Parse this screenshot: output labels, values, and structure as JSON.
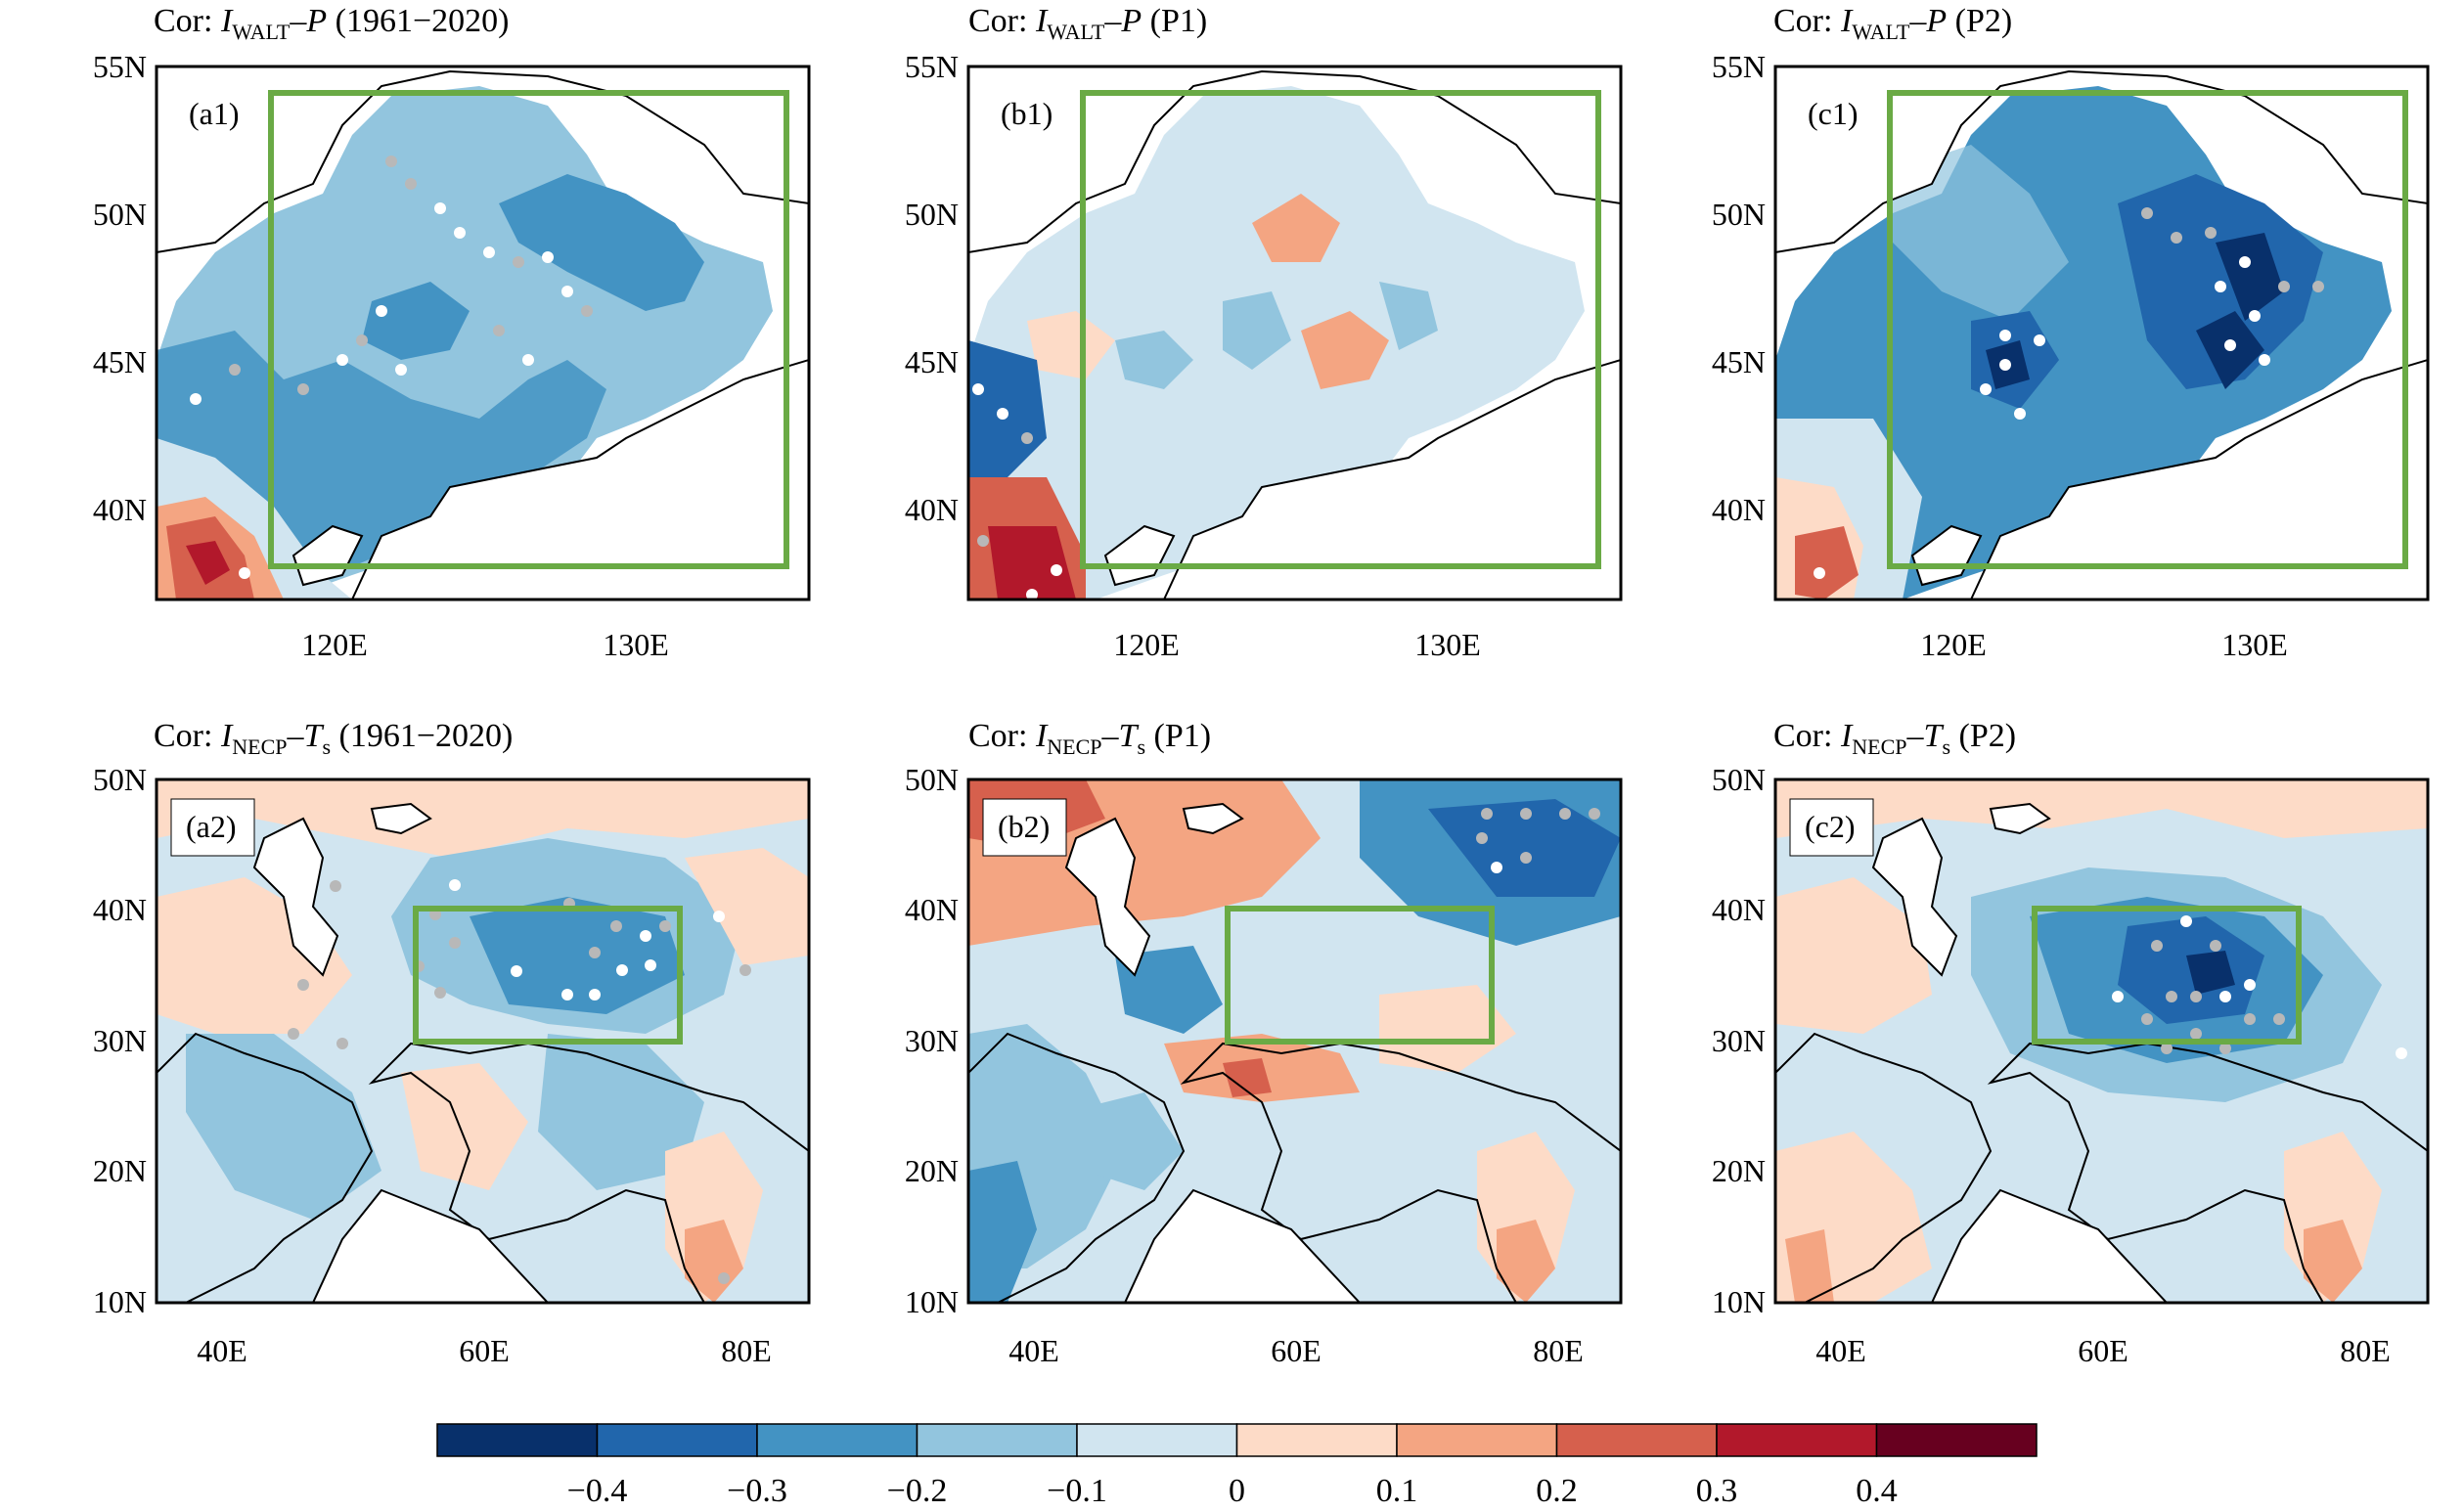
{
  "panels": [
    {
      "id": "a1",
      "label": "(a1)",
      "title": {
        "prefix": "Cor: ",
        "var": "I",
        "sub": "WALT",
        "mid": "–",
        "var2": "P",
        "sub2": "",
        "suffix": " (1961−2020)"
      },
      "lat_ticks": [
        "55N",
        "50N",
        "45N",
        "40N"
      ],
      "lon_ticks": [
        "120E",
        "130E"
      ],
      "box": "green-rectangle",
      "fill": "mixed-light-blue"
    },
    {
      "id": "b1",
      "label": "(b1)",
      "title": {
        "prefix": "Cor: ",
        "var": "I",
        "sub": "WALT",
        "mid": "–",
        "var2": "P",
        "sub2": "",
        "suffix": " (P1)"
      },
      "lat_ticks": [
        "55N",
        "50N",
        "45N",
        "40N"
      ],
      "lon_ticks": [
        "120E",
        "130E"
      ],
      "box": "green-rectangle",
      "fill": "mixed-pale"
    },
    {
      "id": "c1",
      "label": "(c1)",
      "title": {
        "prefix": "Cor: ",
        "var": "I",
        "sub": "WALT",
        "mid": "–",
        "var2": "P",
        "sub2": "",
        "suffix": " (P2)"
      },
      "lat_ticks": [
        "55N",
        "50N",
        "45N",
        "40N"
      ],
      "lon_ticks": [
        "120E",
        "130E"
      ],
      "box": "green-rectangle",
      "fill": "mixed-dark-blue"
    },
    {
      "id": "a2",
      "label": "(a2)",
      "title": {
        "prefix": "Cor: ",
        "var": "I",
        "sub": "NECP",
        "mid": "–",
        "var2": "T",
        "sub2": "s",
        "suffix": " (1961−2020)"
      },
      "lat_ticks": [
        "50N",
        "40N",
        "30N",
        "20N",
        "10N"
      ],
      "lon_ticks": [
        "40E",
        "60E",
        "80E"
      ],
      "box": "green-rectangle",
      "fill": "mixed-light-blue"
    },
    {
      "id": "b2",
      "label": "(b2)",
      "title": {
        "prefix": "Cor: ",
        "var": "I",
        "sub": "NECP",
        "mid": "–",
        "var2": "T",
        "sub2": "s",
        "suffix": " (P1)"
      },
      "lat_ticks": [
        "50N",
        "40N",
        "30N",
        "20N",
        "10N"
      ],
      "lon_ticks": [
        "40E",
        "60E",
        "80E"
      ],
      "box": "green-rectangle",
      "fill": "mixed-pale"
    },
    {
      "id": "c2",
      "label": "(c2)",
      "title": {
        "prefix": "Cor: ",
        "var": "I",
        "sub": "NECP",
        "mid": "–",
        "var2": "T",
        "sub2": "s",
        "suffix": " (P2)"
      },
      "lat_ticks": [
        "50N",
        "40N",
        "30N",
        "20N",
        "10N"
      ],
      "lon_ticks": [
        "40E",
        "60E",
        "80E"
      ],
      "box": "green-rectangle",
      "fill": "mixed-dark-blue"
    }
  ],
  "colorbar": {
    "colors": [
      "#08306b",
      "#2166ac",
      "#4393c3",
      "#92c5de",
      "#d1e5f0",
      "#fddbc7",
      "#f4a582",
      "#d6604d",
      "#b2182b",
      "#67001f"
    ],
    "labels": [
      "−0.4",
      "−0.3",
      "−0.2",
      "−0.1",
      "0",
      "0.1",
      "0.2",
      "0.3",
      "0.4"
    ]
  },
  "colors": {
    "box": "#6aaa45",
    "sig_white": "#ffffff",
    "sig_grey": "#b8b8b8",
    "land_white": "#ffffff"
  }
}
